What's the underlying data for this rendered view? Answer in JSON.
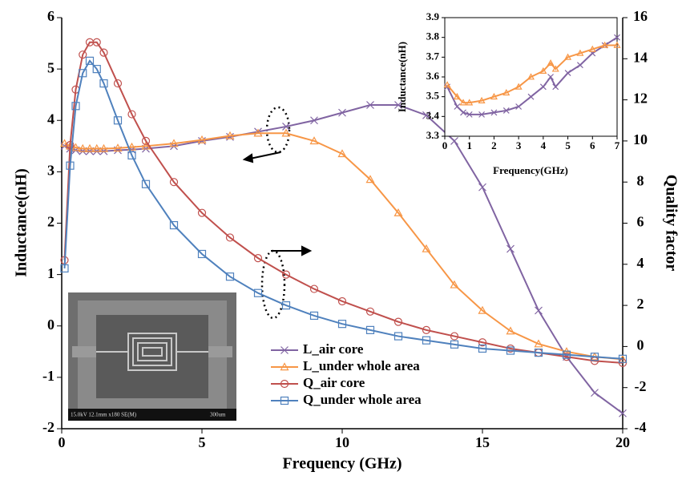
{
  "chart_data": [
    {
      "type": "line",
      "xlabel": "Frequency (GHz)",
      "ylabel": "Inductance(nH)",
      "y2label": "Quality factor",
      "xlim": [
        0,
        20
      ],
      "xticks": [
        0,
        5,
        10,
        15,
        20
      ],
      "ylim": [
        -2,
        6
      ],
      "yticks": [
        -2,
        -1,
        0,
        1,
        2,
        3,
        4,
        5,
        6
      ],
      "y2lim": [
        -4,
        16
      ],
      "y2ticks": [
        -4,
        -2,
        0,
        2,
        4,
        6,
        8,
        10,
        12,
        14,
        16
      ],
      "legend": "lower right",
      "x": [
        0.1,
        0.3,
        0.5,
        0.75,
        1,
        1.25,
        1.5,
        2,
        2.5,
        3,
        4,
        5,
        6,
        7,
        8,
        9,
        10,
        11,
        12,
        13,
        14,
        15,
        16,
        17,
        18,
        19,
        20
      ],
      "series": [
        {
          "name": "L_air core",
          "color": "#8064a2",
          "marker": "x",
          "values": [
            3.5,
            3.45,
            3.42,
            3.4,
            3.4,
            3.4,
            3.4,
            3.42,
            3.43,
            3.45,
            3.5,
            3.6,
            3.68,
            3.78,
            3.88,
            4.0,
            4.15,
            4.3,
            4.3,
            4.1,
            3.6,
            2.7,
            1.5,
            0.3,
            -0.6,
            -1.3,
            -1.7
          ]
        },
        {
          "name": "L_under whole area",
          "color": "#f79646",
          "marker": "triangle",
          "values": [
            3.55,
            3.5,
            3.47,
            3.45,
            3.45,
            3.45,
            3.45,
            3.46,
            3.48,
            3.5,
            3.55,
            3.62,
            3.7,
            3.75,
            3.75,
            3.6,
            3.35,
            2.85,
            2.2,
            1.5,
            0.8,
            0.3,
            -0.1,
            -0.35,
            -0.5,
            -0.6,
            -0.65
          ]
        },
        {
          "name": "Q_air core",
          "color": "#c0504d",
          "marker": "circle",
          "axis": "y2",
          "values": [
            4.2,
            9.8,
            12.5,
            14.2,
            14.8,
            14.8,
            14.3,
            12.8,
            11.3,
            10,
            8.0,
            6.5,
            5.3,
            4.3,
            3.5,
            2.8,
            2.2,
            1.7,
            1.2,
            0.8,
            0.5,
            0.2,
            -0.1,
            -0.3,
            -0.5,
            -0.7,
            -0.8
          ]
        },
        {
          "name": "Q_under whole area",
          "color": "#4f81bd",
          "marker": "square",
          "axis": "y2",
          "values": [
            3.8,
            8.8,
            11.7,
            13.3,
            13.9,
            13.5,
            12.8,
            11,
            9.3,
            7.9,
            5.9,
            4.5,
            3.4,
            2.6,
            2.0,
            1.5,
            1.1,
            0.8,
            0.5,
            0.3,
            0.1,
            -0.1,
            -0.2,
            -0.3,
            -0.4,
            -0.5,
            -0.6
          ]
        }
      ]
    },
    {
      "type": "line",
      "xlabel": "Frequency(GHz)",
      "ylabel": "Inductance(nH)",
      "xlim": [
        0,
        7
      ],
      "xticks": [
        0,
        1,
        2,
        3,
        4,
        5,
        6,
        7
      ],
      "ylim": [
        3.3,
        3.9
      ],
      "yticks": [
        3.3,
        3.4,
        3.5,
        3.6,
        3.7,
        3.8,
        3.9
      ],
      "x": [
        0.1,
        0.5,
        0.75,
        1,
        1.5,
        2,
        2.5,
        3,
        3.5,
        4,
        4.3,
        4.5,
        5,
        5.5,
        6,
        6.5,
        7
      ],
      "series": [
        {
          "color": "#8064a2",
          "marker": "x",
          "values": [
            3.55,
            3.45,
            3.42,
            3.41,
            3.41,
            3.42,
            3.43,
            3.45,
            3.5,
            3.55,
            3.6,
            3.55,
            3.62,
            3.66,
            3.72,
            3.76,
            3.8
          ]
        },
        {
          "color": "#f79646",
          "marker": "triangle",
          "values": [
            3.56,
            3.5,
            3.47,
            3.47,
            3.48,
            3.5,
            3.52,
            3.55,
            3.6,
            3.63,
            3.67,
            3.64,
            3.7,
            3.72,
            3.74,
            3.76,
            3.76
          ]
        }
      ]
    }
  ],
  "sem_image": {
    "info": "15.0kV 12.1mm x180 SE(M)",
    "scale": "300um"
  }
}
